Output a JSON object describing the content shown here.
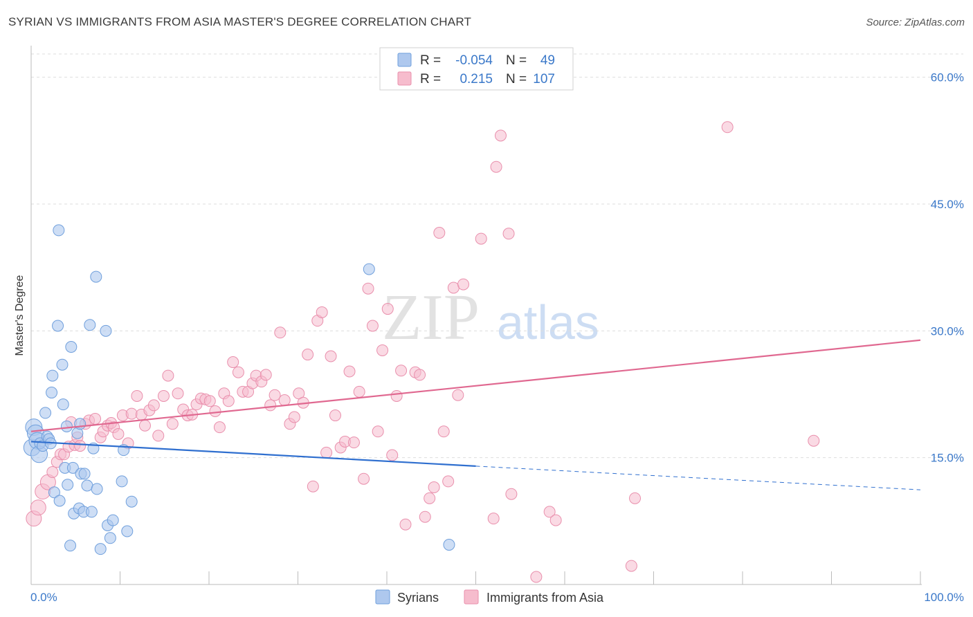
{
  "title": "SYRIAN VS IMMIGRANTS FROM ASIA MASTER'S DEGREE CORRELATION CHART",
  "source": "Source: ZipAtlas.com",
  "watermark": {
    "zip": "ZIP",
    "atlas": "atlas"
  },
  "legend": {
    "rows": [
      {
        "r_label": "R =",
        "r_value": "-0.054",
        "n_label": "N =",
        "n_value": "49"
      },
      {
        "r_label": "R =",
        "r_value": "0.215",
        "n_label": "N =",
        "n_value": "107"
      }
    ]
  },
  "bottom_legend": [
    "Syrians",
    "Immigrants from Asia"
  ],
  "colors": {
    "syrians_fill": "#aec8ee",
    "syrians_stroke": "#6f9fdc",
    "syrians_line": "#2f6fcf",
    "asia_fill": "#f6bccd",
    "asia_stroke": "#e98fac",
    "asia_line": "#e06890",
    "grid": "#dddddd",
    "tick_text": "#3a78c9"
  },
  "chart_data": {
    "type": "scatter",
    "title": "SYRIAN VS IMMIGRANTS FROM ASIA MASTER'S DEGREE CORRELATION CHART",
    "xlabel": "",
    "ylabel": "Master's Degree",
    "xlim": [
      0,
      100
    ],
    "ylim": [
      0,
      63
    ],
    "x_tick_labels": [
      "0.0%",
      "100.0%"
    ],
    "y_ticks": [
      15,
      30,
      45,
      60
    ],
    "y_tick_labels": [
      "15.0%",
      "30.0%",
      "45.0%",
      "60.0%"
    ],
    "series": [
      {
        "name": "Syrians",
        "R": -0.054,
        "N": 49,
        "trend": {
          "x": [
            0,
            50
          ],
          "y": [
            16.9,
            14.0
          ]
        },
        "trend_extension": {
          "x": [
            50,
            100
          ],
          "y": [
            14.0,
            11.2
          ]
        },
        "points": [
          [
            0.1,
            16.2
          ],
          [
            0.3,
            18.6
          ],
          [
            0.5,
            17.9
          ],
          [
            0.7,
            17.0
          ],
          [
            0.9,
            15.4
          ],
          [
            1.0,
            16.7
          ],
          [
            1.3,
            16.4
          ],
          [
            1.6,
            20.3
          ],
          [
            1.8,
            17.5
          ],
          [
            2.0,
            17.2
          ],
          [
            2.2,
            16.7
          ],
          [
            2.3,
            22.7
          ],
          [
            2.4,
            24.7
          ],
          [
            2.6,
            10.9
          ],
          [
            3.0,
            30.6
          ],
          [
            3.1,
            41.9
          ],
          [
            3.2,
            9.9
          ],
          [
            3.5,
            26.0
          ],
          [
            3.6,
            21.3
          ],
          [
            3.8,
            13.8
          ],
          [
            4.0,
            18.7
          ],
          [
            4.1,
            11.8
          ],
          [
            4.4,
            4.6
          ],
          [
            4.5,
            28.1
          ],
          [
            4.7,
            13.8
          ],
          [
            4.8,
            8.4
          ],
          [
            5.2,
            17.9
          ],
          [
            5.4,
            9.0
          ],
          [
            5.5,
            19.0
          ],
          [
            5.6,
            13.1
          ],
          [
            5.9,
            8.6
          ],
          [
            6.0,
            13.1
          ],
          [
            6.3,
            11.7
          ],
          [
            6.6,
            30.7
          ],
          [
            6.8,
            8.6
          ],
          [
            7.0,
            16.1
          ],
          [
            7.4,
            11.3
          ],
          [
            7.3,
            36.4
          ],
          [
            7.8,
            4.2
          ],
          [
            8.4,
            30.0
          ],
          [
            8.6,
            7.0
          ],
          [
            8.9,
            5.5
          ],
          [
            9.2,
            7.6
          ],
          [
            10.2,
            12.2
          ],
          [
            10.4,
            15.9
          ],
          [
            10.8,
            6.3
          ],
          [
            11.3,
            9.8
          ],
          [
            38.0,
            37.3
          ],
          [
            47.0,
            4.7
          ]
        ]
      },
      {
        "name": "Immigrants from Asia",
        "R": 0.215,
        "N": 107,
        "trend": {
          "x": [
            0,
            100
          ],
          "y": [
            18.1,
            28.9
          ]
        },
        "points": [
          [
            0.3,
            7.8
          ],
          [
            0.8,
            9.1
          ],
          [
            1.3,
            11.0
          ],
          [
            1.9,
            12.1
          ],
          [
            2.4,
            13.3
          ],
          [
            2.9,
            14.5
          ],
          [
            3.3,
            15.4
          ],
          [
            3.7,
            15.4
          ],
          [
            4.2,
            16.3
          ],
          [
            4.5,
            19.2
          ],
          [
            4.9,
            16.5
          ],
          [
            5.2,
            17.4
          ],
          [
            5.5,
            16.4
          ],
          [
            6.1,
            19.0
          ],
          [
            6.5,
            19.4
          ],
          [
            7.2,
            19.6
          ],
          [
            7.8,
            17.4
          ],
          [
            8.1,
            18.1
          ],
          [
            8.6,
            18.8
          ],
          [
            9.0,
            19.1
          ],
          [
            9.3,
            18.6
          ],
          [
            9.8,
            17.8
          ],
          [
            10.3,
            20.0
          ],
          [
            10.9,
            16.7
          ],
          [
            11.3,
            20.2
          ],
          [
            11.9,
            22.3
          ],
          [
            12.4,
            20.1
          ],
          [
            12.8,
            18.8
          ],
          [
            13.3,
            20.6
          ],
          [
            13.8,
            21.2
          ],
          [
            14.3,
            17.6
          ],
          [
            14.9,
            22.3
          ],
          [
            15.4,
            24.7
          ],
          [
            15.9,
            19.0
          ],
          [
            16.5,
            22.6
          ],
          [
            17.1,
            20.7
          ],
          [
            17.6,
            20.0
          ],
          [
            18.1,
            20.1
          ],
          [
            18.6,
            21.3
          ],
          [
            19.1,
            22.0
          ],
          [
            19.6,
            21.9
          ],
          [
            20.1,
            21.7
          ],
          [
            20.7,
            20.5
          ],
          [
            21.2,
            18.6
          ],
          [
            21.7,
            22.6
          ],
          [
            22.2,
            21.7
          ],
          [
            22.7,
            26.3
          ],
          [
            23.3,
            25.1
          ],
          [
            23.8,
            22.8
          ],
          [
            24.4,
            22.8
          ],
          [
            24.9,
            23.8
          ],
          [
            25.3,
            24.7
          ],
          [
            25.9,
            24.0
          ],
          [
            26.4,
            24.8
          ],
          [
            26.9,
            21.2
          ],
          [
            27.4,
            22.4
          ],
          [
            28.0,
            29.8
          ],
          [
            28.5,
            21.8
          ],
          [
            29.1,
            19.0
          ],
          [
            29.6,
            19.8
          ],
          [
            30.1,
            22.6
          ],
          [
            30.6,
            21.5
          ],
          [
            31.1,
            27.2
          ],
          [
            31.7,
            11.6
          ],
          [
            32.2,
            31.2
          ],
          [
            32.7,
            32.2
          ],
          [
            33.2,
            15.6
          ],
          [
            33.7,
            27.0
          ],
          [
            34.2,
            20.0
          ],
          [
            34.8,
            16.2
          ],
          [
            35.3,
            16.9
          ],
          [
            35.8,
            25.2
          ],
          [
            36.3,
            16.8
          ],
          [
            36.9,
            22.8
          ],
          [
            37.4,
            12.5
          ],
          [
            37.9,
            35.0
          ],
          [
            38.4,
            30.6
          ],
          [
            39.0,
            18.1
          ],
          [
            39.5,
            27.7
          ],
          [
            40.1,
            32.6
          ],
          [
            40.6,
            15.3
          ],
          [
            41.1,
            22.3
          ],
          [
            41.6,
            25.3
          ],
          [
            42.1,
            7.1
          ],
          [
            43.2,
            25.1
          ],
          [
            44.3,
            8.0
          ],
          [
            43.7,
            24.8
          ],
          [
            44.8,
            10.2
          ],
          [
            45.3,
            11.5
          ],
          [
            45.9,
            41.6
          ],
          [
            46.4,
            18.1
          ],
          [
            46.9,
            12.2
          ],
          [
            47.5,
            35.1
          ],
          [
            48.0,
            22.4
          ],
          [
            48.6,
            35.5
          ],
          [
            50.6,
            40.9
          ],
          [
            52.0,
            7.8
          ],
          [
            52.3,
            49.4
          ],
          [
            52.8,
            53.1
          ],
          [
            53.7,
            41.5
          ],
          [
            54.0,
            10.7
          ],
          [
            56.8,
            0.9
          ],
          [
            58.3,
            8.6
          ],
          [
            59.0,
            7.6
          ],
          [
            67.5,
            2.2
          ],
          [
            67.9,
            10.2
          ],
          [
            78.3,
            54.1
          ],
          [
            88.0,
            17.0
          ]
        ]
      }
    ]
  }
}
